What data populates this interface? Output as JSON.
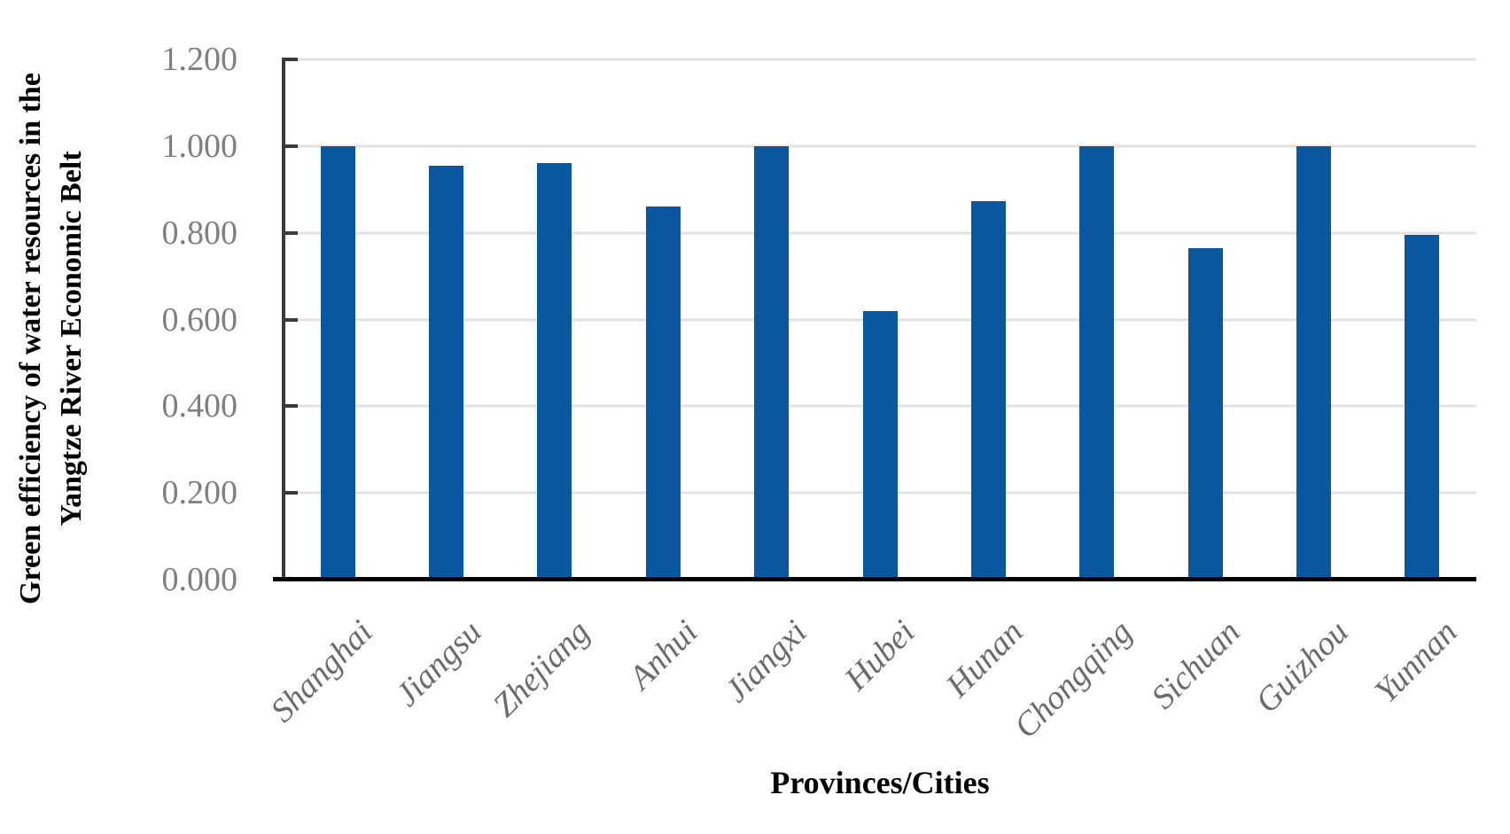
{
  "chart_data": {
    "type": "bar",
    "title": "",
    "categories": [
      "Shanghai",
      "Jiangsu",
      "Zhejiang",
      "Anhui",
      "Jiangxi",
      "Hubei",
      "Hunan",
      "Chongqing",
      "Sichuan",
      "Guizhou",
      "Yunnan"
    ],
    "values": [
      1.0,
      0.955,
      0.96,
      0.86,
      1.0,
      0.62,
      0.873,
      1.0,
      0.765,
      1.0,
      0.795
    ],
    "xlabel": "Provinces/Cities",
    "ylabel": "Green efficiency of water resources in the Yangtze River Economic Belt",
    "ylabel_lines": [
      "Green efficiency of water resources in the",
      "Yangtze River Economic Belt"
    ],
    "ylim": [
      0.0,
      1.2
    ],
    "ytick_step": 0.2,
    "ytick_labels": [
      "0.000",
      "0.200",
      "0.400",
      "0.600",
      "0.800",
      "1.000",
      "1.200"
    ],
    "grid": true,
    "legend": "none",
    "colors": {
      "bar": "#0a57a0",
      "gridline": "#e2e2e2",
      "axis_line": "#3a3a3a",
      "bottom_axis": "#000000",
      "tick_label": "#7f7f7f",
      "category_label": "#6b6b6b"
    }
  }
}
